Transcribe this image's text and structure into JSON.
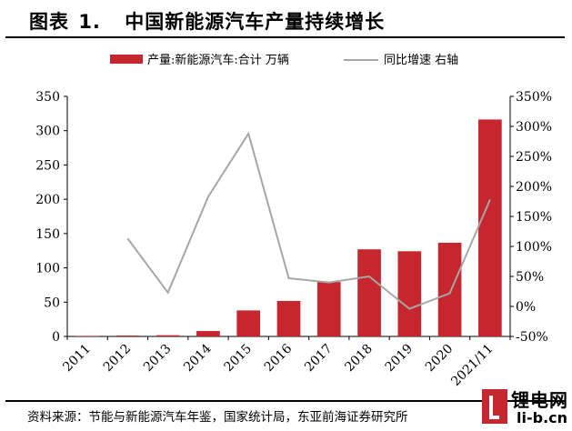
{
  "header": {
    "title_prefix": "图表",
    "title_number": "1.",
    "title_text": "中国新能源汽车产量持续增长"
  },
  "chart_data": {
    "type": "bar",
    "categories": [
      "2011",
      "2012",
      "2013",
      "2014",
      "2015",
      "2016",
      "2017",
      "2018",
      "2019",
      "2020",
      "2021/11"
    ],
    "series": [
      {
        "name": "产量:新能源汽车:合计 万辆",
        "type": "bar",
        "axis": "left",
        "color": "#c6262e",
        "values": [
          0.8,
          1.3,
          1.8,
          7.9,
          37.9,
          51.7,
          79.4,
          127,
          124.2,
          136.6,
          316.3
        ]
      },
      {
        "name": "同比增速 右轴",
        "type": "line",
        "axis": "right",
        "color": "#a6a6a6",
        "values": [
          null,
          113,
          23,
          183,
          288,
          47,
          40,
          50,
          -4,
          22,
          178
        ]
      }
    ],
    "left_axis": {
      "min": 0,
      "max": 350,
      "ticks": [
        "0",
        "50",
        "100",
        "150",
        "200",
        "250",
        "300",
        "350"
      ]
    },
    "right_axis": {
      "min": -50,
      "max": 350,
      "ticks": [
        "-50%",
        "0%",
        "50%",
        "100%",
        "150%",
        "200%",
        "250%",
        "300%",
        "350%"
      ]
    },
    "legend_position": "top"
  },
  "footer": {
    "source": "资料来源：节能与新能源汽车年鉴，国家统计局，东亚前海证券研究所"
  },
  "watermark": {
    "cn": "锂电网",
    "en": "li-b.cn"
  }
}
